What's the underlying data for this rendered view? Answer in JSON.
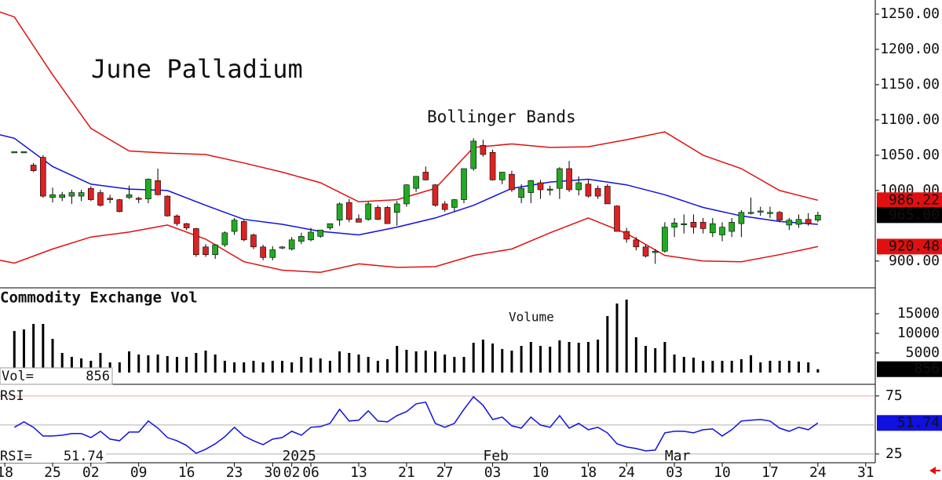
{
  "chart_data": {
    "type": "candlestick",
    "title": "June Palladium",
    "annotation": "Bollinger Bands",
    "xlim": [
      -1.5,
      90
    ],
    "xticks": [
      {
        "value": -1,
        "label": "18"
      },
      {
        "value": 4,
        "label": "25"
      },
      {
        "value": 8,
        "label": "02"
      },
      {
        "value": 13,
        "label": "09"
      },
      {
        "value": 18,
        "label": "16"
      },
      {
        "value": 23,
        "label": "23"
      },
      {
        "value": 27,
        "label": "30"
      },
      {
        "value": 29,
        "label": "02"
      },
      {
        "value": 31,
        "label": "06"
      },
      {
        "value": 36,
        "label": "13"
      },
      {
        "value": 41,
        "label": "21"
      },
      {
        "value": 45,
        "label": "27"
      },
      {
        "value": 50,
        "label": "03"
      },
      {
        "value": 55,
        "label": "10"
      },
      {
        "value": 60,
        "label": "18"
      },
      {
        "value": 64,
        "label": "24"
      },
      {
        "value": 69,
        "label": "03"
      },
      {
        "value": 74,
        "label": "10"
      },
      {
        "value": 79,
        "label": "17"
      },
      {
        "value": 84,
        "label": "24"
      },
      {
        "value": 89,
        "label": "31"
      }
    ],
    "month_labels": [
      {
        "value": 28,
        "label": "2025"
      },
      {
        "value": 49,
        "label": "Feb"
      },
      {
        "value": 68,
        "label": "Mar"
      }
    ],
    "ylim": [
      862,
      1270
    ],
    "yticks": [
      {
        "value": 900,
        "label": "900.00"
      },
      {
        "value": 1000,
        "label": "1000.00"
      },
      {
        "value": 1050,
        "label": "1050.00"
      },
      {
        "value": 1100,
        "label": "1100.00"
      },
      {
        "value": 1150,
        "label": "1150.00"
      },
      {
        "value": 1200,
        "label": "1200.00"
      },
      {
        "value": 1250,
        "label": "1250.00"
      }
    ],
    "up_color": "#22aa22",
    "down_color": "#dd2222",
    "ohlc": [
      [
        1055,
        1055,
        1055,
        1055
      ],
      [
        1055,
        1055,
        1055,
        1055
      ],
      [
        1036,
        1039,
        1026,
        1028
      ],
      [
        1047,
        1050,
        990,
        992
      ],
      [
        990,
        1004,
        983,
        994
      ],
      [
        990,
        998,
        985,
        994
      ],
      [
        992,
        1001,
        981,
        997
      ],
      [
        992,
        1001,
        985,
        997
      ],
      [
        1003,
        1006,
        985,
        987
      ],
      [
        997,
        1001,
        977,
        979
      ],
      [
        989,
        994,
        982,
        987
      ],
      [
        987,
        988,
        969,
        970
      ],
      [
        990,
        1007,
        988,
        994
      ],
      [
        989,
        991,
        982,
        988
      ],
      [
        988,
        1017,
        982,
        1016
      ],
      [
        1014,
        1031,
        993,
        994
      ],
      [
        992,
        993,
        963,
        964
      ],
      [
        964,
        966,
        950,
        953
      ],
      [
        953,
        954,
        944,
        947
      ],
      [
        946,
        947,
        906,
        909
      ],
      [
        920,
        924,
        906,
        909
      ],
      [
        909,
        924,
        903,
        923
      ],
      [
        923,
        942,
        920,
        940
      ],
      [
        942,
        961,
        937,
        958
      ],
      [
        956,
        958,
        928,
        930
      ],
      [
        937,
        939,
        917,
        920
      ],
      [
        920,
        923,
        901,
        905
      ],
      [
        905,
        921,
        901,
        916
      ],
      [
        920,
        921,
        917,
        920
      ],
      [
        917,
        934,
        915,
        930
      ],
      [
        928,
        940,
        924,
        935
      ],
      [
        930,
        947,
        928,
        941
      ],
      [
        935,
        944,
        933,
        944
      ],
      [
        947,
        951,
        944,
        953
      ],
      [
        958,
        983,
        950,
        981
      ],
      [
        983,
        988,
        955,
        959
      ],
      [
        960,
        966,
        955,
        955
      ],
      [
        959,
        984,
        957,
        981
      ],
      [
        976,
        979,
        958,
        959
      ],
      [
        976,
        978,
        953,
        953
      ],
      [
        969,
        985,
        950,
        981
      ],
      [
        981,
        1009,
        977,
        1008
      ],
      [
        1003,
        1020,
        998,
        1020
      ],
      [
        1026,
        1034,
        1014,
        1015
      ],
      [
        1008,
        1009,
        977,
        979
      ],
      [
        981,
        985,
        970,
        973
      ],
      [
        976,
        988,
        970,
        987
      ],
      [
        987,
        1031,
        982,
        1031
      ],
      [
        1031,
        1074,
        1028,
        1070
      ],
      [
        1064,
        1072,
        1048,
        1051
      ],
      [
        1054,
        1058,
        1014,
        1015
      ],
      [
        1015,
        1026,
        1009,
        1026
      ],
      [
        1023,
        1028,
        998,
        1001
      ],
      [
        990,
        1009,
        982,
        1003
      ],
      [
        997,
        1015,
        982,
        1014
      ],
      [
        1011,
        1015,
        988,
        1001
      ],
      [
        1001,
        1007,
        993,
        1002
      ],
      [
        1003,
        1033,
        988,
        1031
      ],
      [
        1031,
        1042,
        998,
        1001
      ],
      [
        1001,
        1020,
        993,
        1011
      ],
      [
        1009,
        1015,
        990,
        992
      ],
      [
        1003,
        1007,
        988,
        992
      ],
      [
        1006,
        1009,
        981,
        981
      ],
      [
        978,
        979,
        942,
        942
      ],
      [
        942,
        947,
        926,
        931
      ],
      [
        930,
        934,
        915,
        920
      ],
      [
        920,
        923,
        905,
        907
      ],
      [
        912,
        917,
        896,
        914
      ],
      [
        914,
        955,
        912,
        948
      ],
      [
        948,
        961,
        934,
        954
      ],
      [
        953,
        966,
        939,
        953
      ],
      [
        955,
        966,
        939,
        948
      ],
      [
        955,
        961,
        939,
        946
      ],
      [
        940,
        961,
        934,
        953
      ],
      [
        937,
        955,
        928,
        948
      ],
      [
        942,
        961,
        934,
        955
      ],
      [
        953,
        972,
        934,
        969
      ],
      [
        969,
        990,
        966,
        969
      ],
      [
        971,
        977,
        964,
        971
      ],
      [
        969,
        977,
        961,
        969
      ],
      [
        969,
        971,
        955,
        958
      ],
      [
        951,
        961,
        944,
        958
      ],
      [
        952,
        966,
        947,
        959
      ],
      [
        959,
        968,
        950,
        953
      ],
      [
        958,
        970,
        955,
        965
      ]
    ],
    "band_x": [
      -1.5,
      0,
      4,
      8,
      12,
      16,
      20,
      24,
      28,
      32,
      36,
      40,
      44,
      48,
      52,
      56,
      60,
      64,
      68,
      72,
      76,
      80,
      84
    ],
    "bands": [
      {
        "color": "#e01010",
        "values": [
          1253,
          1246,
          1164,
          1088,
          1056,
          1053,
          1051,
          1039,
          1026,
          1011,
          984,
          987,
          1003,
          1061,
          1066,
          1061,
          1062,
          1072,
          1083,
          1050,
          1031,
          1000,
          986.22
        ]
      },
      {
        "color": "#1010e0",
        "values": [
          1079,
          1074,
          1034,
          1009,
          1002,
          1000,
          979,
          959,
          952,
          942,
          937,
          948,
          961,
          979,
          1003,
          1012,
          1016,
          1008,
          994,
          976,
          964,
          956,
          952
        ]
      },
      {
        "color": "#e01010",
        "values": [
          901,
          897,
          917,
          934,
          941,
          951,
          931,
          899,
          887,
          884,
          896,
          891,
          892,
          908,
          917,
          940,
          961,
          939,
          908,
          900,
          899,
          909,
          920.48
        ]
      }
    ],
    "price_labels": [
      {
        "value": 986.22,
        "label": "986.22",
        "color": "#e01010"
      },
      {
        "value": 965,
        "label": "965.00",
        "color": "#000000"
      },
      {
        "value": 920.48,
        "label": "920.48",
        "color": "#e01010"
      }
    ],
    "volume": {
      "title": "Commodity Exchange Vol",
      "label": "Volume",
      "readout": "Vol=",
      "color": "#000000",
      "ylim": [
        -3000,
        21600
      ],
      "yticks": [
        5000,
        10000,
        15000
      ],
      "values": [
        10600,
        11000,
        12400,
        12400,
        8600,
        5000,
        4000,
        3600,
        3000,
        5000,
        2600,
        2600,
        5400,
        4600,
        4400,
        4600,
        4200,
        4000,
        4000,
        5000,
        5600,
        4600,
        3000,
        2600,
        2600,
        3000,
        2600,
        3000,
        3000,
        2600,
        4000,
        3800,
        3600,
        3000,
        5400,
        5000,
        4600,
        4000,
        3000,
        3400,
        6800,
        5800,
        5400,
        5600,
        5400,
        4600,
        4000,
        4000,
        7600,
        8400,
        7400,
        6000,
        5600,
        6800,
        7800,
        6800,
        6600,
        8200,
        7800,
        7600,
        7800,
        8400,
        14400,
        17600,
        18600,
        9000,
        6800,
        6200,
        7800,
        4600,
        4000,
        3800,
        3000,
        3000,
        3000,
        3000,
        3400,
        4400,
        2600,
        3000,
        3000,
        3000,
        2800,
        2600,
        856
      ]
    },
    "rsi": {
      "title": "RSI",
      "readout": "RSI=",
      "color": "#1010e0",
      "ylim": [
        17.5,
        85
      ],
      "yticks": [
        25,
        75
      ],
      "ref_lines": [
        {
          "value": 75,
          "color": "#f0a0a0"
        },
        {
          "value": 50,
          "color": "#b0b0b0"
        },
        {
          "value": 25,
          "color": "#b0b0b0"
        }
      ],
      "values": [
        48,
        52.7,
        48,
        40.5,
        40.5,
        41.2,
        42.6,
        42.6,
        39.2,
        44.6,
        37.8,
        36.5,
        43.9,
        43.9,
        53.4,
        47.3,
        39.2,
        36.5,
        32.4,
        25.7,
        29.1,
        33.8,
        39.9,
        48,
        40.5,
        36.5,
        33.1,
        37.8,
        39.2,
        44.6,
        41.2,
        48,
        48.6,
        51.4,
        63.5,
        53.4,
        54.1,
        62.2,
        53.4,
        52.7,
        58.1,
        61.5,
        68.2,
        69.6,
        51.4,
        48,
        51.4,
        63.5,
        74.3,
        66.9,
        54.7,
        56.8,
        49.3,
        47.3,
        56.8,
        50,
        48,
        58.1,
        47.3,
        51.4,
        45.9,
        48,
        43.2,
        33.8,
        31.1,
        29.7,
        27.7,
        28.4,
        43.2,
        44.6,
        44.6,
        43.2,
        45.9,
        46.6,
        40.5,
        45.9,
        53.4,
        54.1,
        54.7,
        53.4,
        47.3,
        44.6,
        48,
        45.9,
        51.74
      ]
    }
  }
}
